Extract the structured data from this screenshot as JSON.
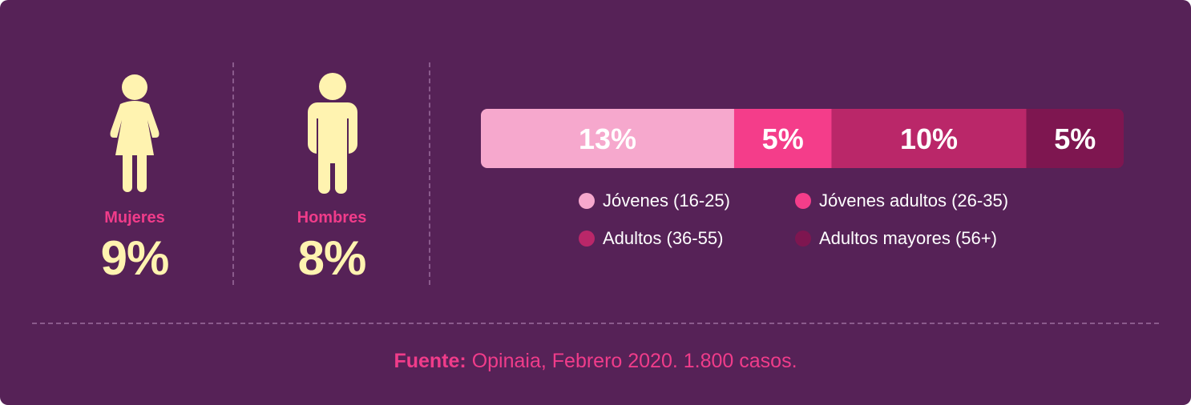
{
  "genders": [
    {
      "label": "Mujeres",
      "value": "9%"
    },
    {
      "label": "Hombres",
      "value": "8%"
    }
  ],
  "chart_data": {
    "type": "bar",
    "stacked": true,
    "orientation": "horizontal",
    "series": [
      {
        "name": "Jóvenes (16-25)",
        "value": 13,
        "label": "13%",
        "color": "#f6a8cd"
      },
      {
        "name": "Jóvenes adultos (26-35)",
        "value": 5,
        "label": "5%",
        "color": "#f43d8a"
      },
      {
        "name": "Adultos (36-55)",
        "value": 10,
        "label": "10%",
        "color": "#ba2769"
      },
      {
        "name": "Adultos mayores (56+)",
        "value": 5,
        "label": "5%",
        "color": "#7e1650"
      }
    ]
  },
  "source": {
    "label": "Fuente:",
    "text": "Opinaia, Febrero 2020. 1.800 casos."
  },
  "colors": {
    "background": "#562257",
    "accent_pink": "#f03c8a",
    "accent_yellow": "#fff3b0"
  },
  "icons": [
    "woman-icon",
    "man-icon"
  ]
}
